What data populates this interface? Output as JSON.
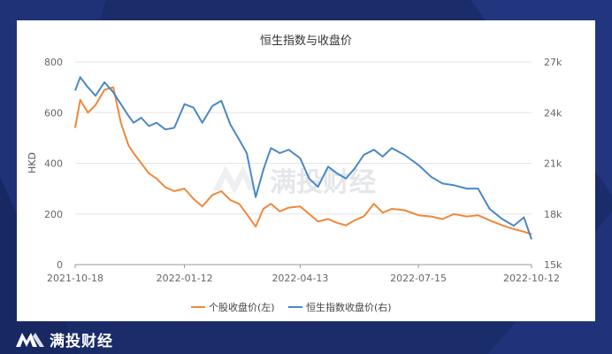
{
  "brand": {
    "name": "满投财经",
    "watermark": "满投财经"
  },
  "chart_data": {
    "type": "line",
    "title": "恒生指数与收盘价",
    "ylabel_left": "HKD",
    "ylabel_right": "",
    "x_ticks": [
      "2021-10-18",
      "2022-01-12",
      "2022-04-13",
      "2022-07-15",
      "2022-10-12"
    ],
    "x_range": [
      "2021-10-18",
      "2022-10-12"
    ],
    "y_left": {
      "ticks": [
        0,
        200,
        400,
        600,
        800
      ],
      "range": [
        0,
        800
      ]
    },
    "y_right": {
      "ticks": [
        "15k",
        "18k",
        "21k",
        "24k",
        "27k"
      ],
      "range": [
        15000,
        27000
      ]
    },
    "grid": true,
    "legend_position": "bottom",
    "series": [
      {
        "name": "个股收盘价(左)",
        "axis": "left",
        "color": "#f0883a",
        "x": [
          "2021-10-18",
          "2021-10-22",
          "2021-10-28",
          "2021-11-03",
          "2021-11-10",
          "2021-11-17",
          "2021-11-23",
          "2021-11-29",
          "2021-12-03",
          "2021-12-09",
          "2021-12-15",
          "2021-12-21",
          "2021-12-28",
          "2022-01-04",
          "2022-01-12",
          "2022-01-19",
          "2022-01-26",
          "2022-02-03",
          "2022-02-10",
          "2022-02-17",
          "2022-02-24",
          "2022-03-02",
          "2022-03-09",
          "2022-03-15",
          "2022-03-21",
          "2022-03-28",
          "2022-04-04",
          "2022-04-13",
          "2022-04-20",
          "2022-04-27",
          "2022-05-05",
          "2022-05-12",
          "2022-05-19",
          "2022-05-26",
          "2022-06-02",
          "2022-06-10",
          "2022-06-17",
          "2022-06-24",
          "2022-07-04",
          "2022-07-15",
          "2022-07-25",
          "2022-08-03",
          "2022-08-12",
          "2022-08-22",
          "2022-08-31",
          "2022-09-09",
          "2022-09-19",
          "2022-09-28",
          "2022-10-06",
          "2022-10-12"
        ],
        "y": [
          540,
          650,
          600,
          630,
          690,
          700,
          560,
          470,
          440,
          400,
          360,
          340,
          305,
          290,
          300,
          260,
          230,
          275,
          290,
          255,
          240,
          200,
          150,
          220,
          240,
          210,
          225,
          230,
          200,
          170,
          180,
          165,
          155,
          175,
          190,
          240,
          205,
          220,
          215,
          195,
          190,
          180,
          200,
          190,
          195,
          175,
          155,
          140,
          130,
          120
        ]
      },
      {
        "name": "恒生指数收盘价(右)",
        "axis": "right",
        "color": "#4a88c4",
        "x": [
          "2021-10-18",
          "2021-10-22",
          "2021-10-28",
          "2021-11-03",
          "2021-11-10",
          "2021-11-17",
          "2021-11-23",
          "2021-11-29",
          "2021-12-03",
          "2021-12-09",
          "2021-12-15",
          "2021-12-21",
          "2021-12-28",
          "2022-01-04",
          "2022-01-12",
          "2022-01-19",
          "2022-01-26",
          "2022-02-03",
          "2022-02-10",
          "2022-02-17",
          "2022-02-24",
          "2022-03-02",
          "2022-03-09",
          "2022-03-15",
          "2022-03-21",
          "2022-03-28",
          "2022-04-04",
          "2022-04-13",
          "2022-04-20",
          "2022-04-27",
          "2022-05-05",
          "2022-05-12",
          "2022-05-19",
          "2022-05-26",
          "2022-06-02",
          "2022-06-10",
          "2022-06-17",
          "2022-06-24",
          "2022-07-04",
          "2022-07-15",
          "2022-07-25",
          "2022-08-03",
          "2022-08-12",
          "2022-08-22",
          "2022-08-31",
          "2022-09-09",
          "2022-09-19",
          "2022-09-28",
          "2022-10-06",
          "2022-10-12"
        ],
        "y": [
          25300,
          26100,
          25500,
          25000,
          25800,
          25200,
          24500,
          23800,
          23400,
          23700,
          23200,
          23400,
          23000,
          23100,
          24500,
          24300,
          23400,
          24400,
          24700,
          23300,
          22400,
          21600,
          19000,
          20600,
          21900,
          21600,
          21800,
          21300,
          20100,
          19600,
          20800,
          20400,
          20100,
          20700,
          21500,
          21800,
          21400,
          21900,
          21500,
          20900,
          20200,
          19800,
          19700,
          19500,
          19500,
          18300,
          17700,
          17300,
          17800,
          16500
        ]
      }
    ]
  }
}
